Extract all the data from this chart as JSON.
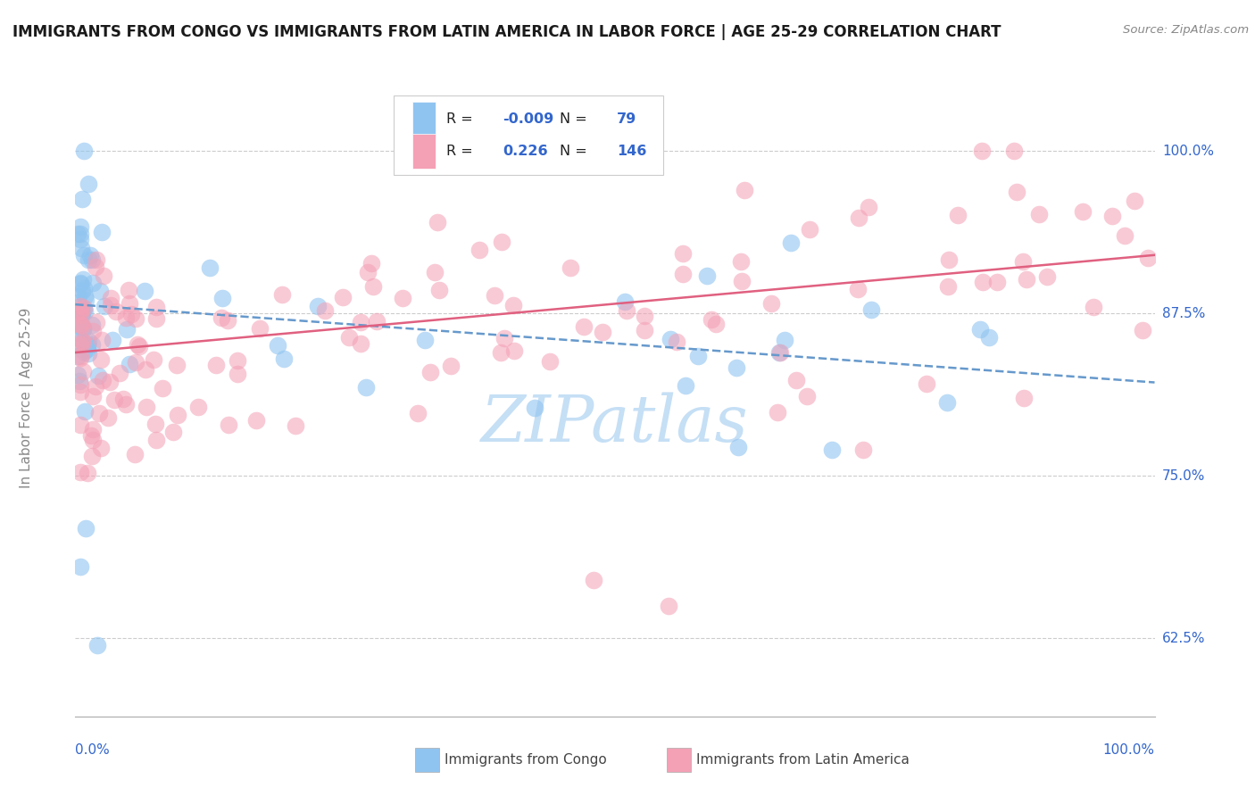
{
  "title": "IMMIGRANTS FROM CONGO VS IMMIGRANTS FROM LATIN AMERICA IN LABOR FORCE | AGE 25-29 CORRELATION CHART",
  "source": "Source: ZipAtlas.com",
  "ylabel": "In Labor Force | Age 25-29",
  "yticks": [
    "62.5%",
    "75.0%",
    "87.5%",
    "100.0%"
  ],
  "ytick_values": [
    0.625,
    0.75,
    0.875,
    1.0
  ],
  "xlim": [
    0.0,
    1.0
  ],
  "ylim": [
    0.565,
    1.055
  ],
  "legend_R_congo": "-0.009",
  "legend_N_congo": "79",
  "legend_R_latin": "0.226",
  "legend_N_latin": "146",
  "color_congo": "#90c4f0",
  "color_latin": "#f4a0b5",
  "color_trend_congo": "#6699cc",
  "color_trend_latin": "#e06080",
  "watermark": "ZIPatlas",
  "watermark_color": "#c5dff5"
}
